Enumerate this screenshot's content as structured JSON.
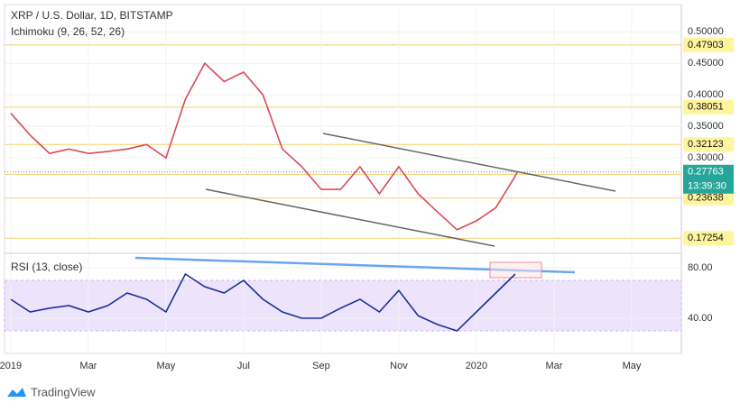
{
  "chart_data": [
    {
      "type": "line",
      "title": "XRP / U.S. Dollar, 1D, BITSTAMP",
      "subtitle": "Ichimoku (9, 26, 52, 26)",
      "color": "#d84a5a",
      "x": [
        0,
        0.5,
        1,
        1.5,
        2,
        2.5,
        3,
        3.5,
        4,
        4.5,
        5,
        5.5,
        6,
        6.5,
        7,
        7.5,
        8,
        8.5,
        9,
        9.5,
        10,
        10.5,
        11,
        11.5,
        12,
        12.5,
        13,
        13.05
      ],
      "values": [
        0.371,
        0.336,
        0.307,
        0.314,
        0.307,
        0.31,
        0.314,
        0.321,
        0.3,
        0.393,
        0.45,
        0.421,
        0.436,
        0.4,
        0.314,
        0.286,
        0.25,
        0.25,
        0.286,
        0.243,
        0.286,
        0.243,
        0.214,
        0.186,
        0.2,
        0.221,
        0.271,
        0.27763
      ],
      "xlim": [
        -0.16,
        17.28
      ],
      "ylim": [
        0.15,
        0.539
      ],
      "yticks": [
        {
          "value": 0.5,
          "label": "0.50000"
        },
        {
          "value": 0.45,
          "label": "0.45000"
        },
        {
          "value": 0.4,
          "label": "0.40000"
        },
        {
          "value": 0.35,
          "label": "0.35000"
        },
        {
          "value": 0.3,
          "label": "0.30000"
        }
      ],
      "levels": [
        0.47903,
        0.38051,
        0.32123,
        0.27389,
        0.23638,
        0.17254
      ],
      "last_price": 0.27763,
      "countdown": "13:39:30",
      "grid": true
    },
    {
      "type": "line",
      "title": "RSI (13, close)",
      "color": "#1a2f9e",
      "x": [
        0,
        0.5,
        1,
        1.5,
        2,
        2.5,
        3,
        3.5,
        4,
        4.5,
        5,
        5.5,
        6,
        6.5,
        7,
        7.5,
        8,
        8.5,
        9,
        9.5,
        10,
        10.5,
        11,
        11.5,
        12,
        12.5,
        13
      ],
      "values": [
        55,
        45,
        48,
        50,
        45,
        50,
        60,
        55,
        45,
        75,
        65,
        60,
        70,
        55,
        45,
        40,
        40,
        48,
        55,
        45,
        62,
        42,
        35,
        30,
        45,
        60,
        75
      ],
      "xlim": [
        -0.16,
        17.28
      ],
      "ylim": [
        10,
        90
      ],
      "band": [
        30,
        70
      ],
      "yticks": [
        {
          "value": 80,
          "label": "80.00"
        },
        {
          "value": 40,
          "label": "40.00"
        }
      ],
      "xticks": [
        {
          "value": 0,
          "label": "2019"
        },
        {
          "value": 2,
          "label": "Mar"
        },
        {
          "value": 4,
          "label": "May"
        },
        {
          "value": 6,
          "label": "Jul"
        },
        {
          "value": 8,
          "label": "Sep"
        },
        {
          "value": 10,
          "label": "Nov"
        },
        {
          "value": 12,
          "label": "2020"
        },
        {
          "value": 14,
          "label": "Mar"
        },
        {
          "value": 16,
          "label": "May"
        }
      ],
      "grid": true
    }
  ],
  "footer": "TradingView"
}
